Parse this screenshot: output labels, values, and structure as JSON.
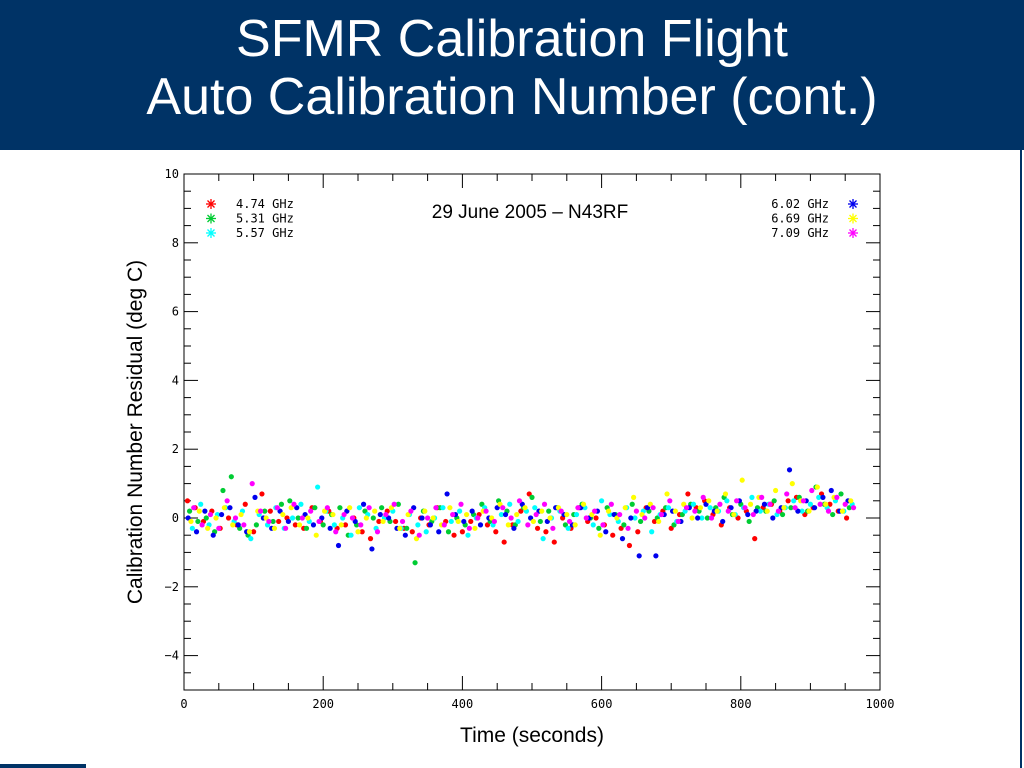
{
  "title": {
    "line1": "SFMR Calibration Flight",
    "line2": "Auto Calibration Number (cont.)"
  },
  "colors": {
    "header_bg": "#003366",
    "header_text": "#ffffff"
  },
  "chart_data": {
    "type": "scatter",
    "xlabel": "Time (seconds)",
    "ylabel": "Calibration Number Residual (deg C)",
    "annotation": "29 June 2005 – N43RF",
    "xlim": [
      0,
      1000
    ],
    "ylim": [
      -5,
      10
    ],
    "xticks": [
      0,
      200,
      400,
      600,
      800,
      1000
    ],
    "yticks": [
      -4,
      -2,
      0,
      2,
      4,
      6,
      8,
      10
    ],
    "grid": false,
    "legend_placement": "top-left and top-right",
    "series": [
      {
        "name": "4.74 GHz",
        "color": "#ff0000",
        "symbol": "asterisk",
        "x": [
          5,
          16,
          28,
          40,
          52,
          64,
          76,
          88,
          100,
          112,
          124,
          136,
          148,
          160,
          172,
          184,
          196,
          208,
          220,
          232,
          244,
          256,
          268,
          280,
          292,
          304,
          316,
          328,
          340,
          352,
          364,
          376,
          388,
          400,
          412,
          424,
          436,
          448,
          460,
          472,
          484,
          496,
          508,
          520,
          532,
          544,
          556,
          568,
          580,
          592,
          604,
          616,
          628,
          640,
          652,
          664,
          676,
          688,
          700,
          712,
          724,
          736,
          748,
          760,
          772,
          784,
          796,
          808,
          820,
          832,
          844,
          856,
          868,
          880,
          892,
          904,
          916,
          928,
          940,
          952
        ],
        "y": [
          0.5,
          0.3,
          -0.1,
          0.2,
          -0.3,
          0.0,
          -0.2,
          0.4,
          -0.4,
          0.7,
          0.2,
          -0.1,
          0.0,
          -0.2,
          -0.3,
          0.3,
          -0.1,
          0.2,
          -0.3,
          -0.2,
          0.0,
          -0.4,
          -0.6,
          -0.1,
          0.2,
          -0.1,
          -0.3,
          -0.4,
          0.0,
          -0.2,
          0.3,
          -0.1,
          -0.5,
          -0.4,
          -0.1,
          0.1,
          -0.2,
          -0.4,
          -0.7,
          -0.2,
          0.2,
          0.7,
          -0.3,
          -0.4,
          -0.7,
          0.0,
          -0.3,
          0.3,
          -0.1,
          0.0,
          -0.2,
          -0.5,
          -0.3,
          -0.8,
          -0.4,
          0.3,
          -0.1,
          0.2,
          -0.3,
          0.1,
          0.7,
          0.3,
          0.5,
          0.1,
          -0.2,
          0.3,
          0.0,
          0.2,
          -0.6,
          0.3,
          0.4,
          0.2,
          0.5,
          0.6,
          0.1,
          0.3,
          0.7,
          0.4,
          0.2,
          0.0
        ]
      },
      {
        "name": "5.31 GHz",
        "color": "#00cc33",
        "symbol": "asterisk",
        "x": [
          8,
          20,
          32,
          44,
          56,
          68,
          80,
          92,
          104,
          116,
          128,
          140,
          152,
          164,
          176,
          188,
          200,
          212,
          224,
          236,
          248,
          260,
          272,
          284,
          296,
          308,
          320,
          332,
          344,
          356,
          368,
          380,
          392,
          404,
          416,
          428,
          440,
          452,
          464,
          476,
          488,
          500,
          512,
          524,
          536,
          548,
          560,
          572,
          584,
          596,
          608,
          620,
          632,
          644,
          656,
          668,
          680,
          692,
          704,
          716,
          728,
          740,
          752,
          764,
          776,
          788,
          800,
          812,
          824,
          836,
          848,
          860,
          872,
          884,
          896,
          908,
          920,
          932,
          944,
          956
        ],
        "y": [
          0.2,
          -0.1,
          0.0,
          -0.4,
          0.8,
          1.2,
          -0.3,
          -0.5,
          -0.2,
          0.2,
          -0.1,
          0.4,
          0.5,
          0.0,
          -0.3,
          0.3,
          -0.2,
          0.1,
          0.3,
          -0.5,
          -0.2,
          0.2,
          0.0,
          0.3,
          -0.1,
          0.4,
          -0.3,
          -1.3,
          0.2,
          -0.1,
          0.3,
          -0.4,
          0.0,
          -0.2,
          0.1,
          0.4,
          -0.1,
          0.5,
          0.2,
          -0.2,
          0.3,
          0.6,
          -0.1,
          0.2,
          0.3,
          -0.2,
          0.1,
          0.4,
          0.0,
          -0.3,
          0.3,
          0.1,
          -0.2,
          0.4,
          -0.1,
          0.2,
          0.0,
          0.3,
          -0.2,
          0.1,
          0.4,
          0.2,
          0.0,
          0.3,
          0.6,
          0.1,
          0.4,
          -0.1,
          0.3,
          0.2,
          0.5,
          0.1,
          0.3,
          0.6,
          0.2,
          0.9,
          0.4,
          0.1,
          0.7,
          0.3
        ]
      },
      {
        "name": "5.57 GHz",
        "color": "#00ffff",
        "symbol": "asterisk",
        "x": [
          12,
          24,
          36,
          48,
          60,
          72,
          84,
          96,
          108,
          120,
          132,
          144,
          156,
          168,
          180,
          192,
          204,
          216,
          228,
          240,
          252,
          264,
          276,
          288,
          300,
          312,
          324,
          336,
          348,
          360,
          372,
          384,
          396,
          408,
          420,
          432,
          444,
          456,
          468,
          480,
          492,
          504,
          516,
          528,
          540,
          552,
          564,
          576,
          588,
          600,
          612,
          624,
          636,
          648,
          660,
          672,
          684,
          696,
          708,
          720,
          732,
          744,
          756,
          768,
          780,
          792,
          804,
          816,
          828,
          840,
          852,
          864,
          876,
          888,
          900,
          912,
          924,
          936,
          948,
          960
        ],
        "y": [
          -0.3,
          0.4,
          -0.2,
          0.1,
          0.3,
          -0.1,
          0.2,
          -0.6,
          0.1,
          -0.2,
          0.3,
          -0.3,
          0.0,
          0.4,
          -0.1,
          0.9,
          0.2,
          -0.2,
          0.0,
          -0.5,
          0.3,
          0.1,
          -0.3,
          0.0,
          0.2,
          -0.3,
          0.1,
          -0.2,
          -0.4,
          0.0,
          0.3,
          -0.1,
          0.2,
          -0.5,
          0.0,
          0.3,
          -0.2,
          0.1,
          0.4,
          -0.1,
          0.2,
          0.3,
          -0.6,
          0.0,
          0.2,
          -0.3,
          0.1,
          0.3,
          -0.2,
          0.5,
          0.1,
          -0.1,
          0.3,
          0.0,
          0.2,
          -0.4,
          0.1,
          0.3,
          -0.1,
          0.2,
          0.4,
          0.0,
          0.3,
          0.2,
          0.5,
          0.1,
          0.3,
          0.6,
          0.2,
          0.4,
          0.1,
          0.3,
          0.5,
          0.2,
          0.4,
          0.6,
          0.3,
          0.5,
          0.2,
          0.4
        ]
      },
      {
        "name": "6.02 GHz",
        "color": "#0000ee",
        "symbol": "asterisk",
        "x": [
          6,
          18,
          30,
          42,
          54,
          66,
          78,
          90,
          102,
          114,
          126,
          138,
          150,
          162,
          174,
          186,
          198,
          210,
          222,
          234,
          246,
          258,
          270,
          282,
          294,
          306,
          318,
          330,
          342,
          354,
          366,
          378,
          390,
          402,
          414,
          426,
          438,
          450,
          462,
          474,
          486,
          498,
          510,
          522,
          534,
          546,
          558,
          570,
          582,
          594,
          606,
          618,
          630,
          642,
          654,
          666,
          678,
          690,
          702,
          714,
          726,
          738,
          750,
          762,
          774,
          786,
          798,
          810,
          822,
          834,
          846,
          858,
          870,
          882,
          894,
          906,
          918,
          930,
          942,
          954
        ],
        "y": [
          0.0,
          -0.4,
          0.2,
          -0.5,
          0.1,
          0.3,
          -0.2,
          -0.4,
          0.6,
          0.0,
          -0.3,
          0.2,
          -0.1,
          0.3,
          0.1,
          -0.2,
          0.0,
          -0.3,
          -0.8,
          0.2,
          -0.1,
          0.4,
          -0.9,
          0.1,
          0.0,
          -0.3,
          -0.5,
          0.3,
          0.0,
          -0.2,
          -0.4,
          0.7,
          0.1,
          -0.1,
          0.2,
          -0.2,
          0.0,
          0.3,
          0.1,
          -0.3,
          0.4,
          0.0,
          0.2,
          -0.1,
          0.3,
          0.1,
          -0.2,
          0.3,
          0.0,
          0.2,
          -0.4,
          0.1,
          -0.6,
          0.0,
          -1.1,
          0.3,
          -1.1,
          0.1,
          0.2,
          -0.1,
          0.3,
          0.0,
          0.4,
          0.2,
          -0.1,
          0.3,
          0.5,
          0.1,
          0.2,
          0.4,
          0.0,
          0.3,
          1.4,
          0.2,
          0.5,
          0.3,
          0.6,
          0.8,
          0.2,
          0.5
        ]
      },
      {
        "name": "6.69 GHz",
        "color": "#ffff00",
        "symbol": "asterisk",
        "x": [
          10,
          22,
          34,
          46,
          58,
          70,
          82,
          94,
          106,
          118,
          130,
          142,
          154,
          166,
          178,
          190,
          202,
          214,
          226,
          238,
          250,
          262,
          274,
          286,
          298,
          310,
          322,
          334,
          346,
          358,
          370,
          382,
          394,
          406,
          418,
          430,
          442,
          454,
          466,
          478,
          490,
          502,
          514,
          526,
          538,
          550,
          562,
          574,
          586,
          598,
          610,
          622,
          634,
          646,
          658,
          670,
          682,
          694,
          706,
          718,
          730,
          742,
          754,
          766,
          778,
          790,
          802,
          814,
          826,
          838,
          850,
          862,
          874,
          886,
          898,
          910,
          922,
          934,
          946,
          958
        ],
        "y": [
          -0.1,
          0.2,
          -0.3,
          0.0,
          0.3,
          -0.2,
          0.1,
          -0.4,
          0.2,
          0.0,
          -0.3,
          0.1,
          0.3,
          -0.2,
          0.0,
          -0.5,
          0.2,
          0.1,
          -0.2,
          0.3,
          -0.4,
          0.0,
          0.2,
          -0.1,
          0.3,
          -0.3,
          0.1,
          -0.6,
          0.2,
          0.0,
          -0.2,
          0.3,
          -0.1,
          0.1,
          -0.3,
          0.2,
          0.0,
          0.4,
          -0.2,
          0.1,
          0.3,
          -0.1,
          0.2,
          0.0,
          0.3,
          0.1,
          -0.2,
          0.4,
          0.1,
          -0.5,
          0.2,
          0.0,
          0.3,
          0.6,
          0.1,
          0.4,
          -0.1,
          0.7,
          0.2,
          0.4,
          0.0,
          0.3,
          0.5,
          0.2,
          0.7,
          0.1,
          1.1,
          0.4,
          0.6,
          0.2,
          0.8,
          0.3,
          1.0,
          0.5,
          0.2,
          0.9,
          0.4,
          0.6,
          0.2,
          0.5
        ]
      },
      {
        "name": "7.09 GHz",
        "color": "#ff00ff",
        "symbol": "asterisk",
        "x": [
          14,
          26,
          38,
          50,
          62,
          74,
          86,
          98,
          110,
          122,
          134,
          146,
          158,
          170,
          182,
          194,
          206,
          218,
          230,
          242,
          254,
          266,
          278,
          290,
          302,
          314,
          326,
          338,
          350,
          362,
          374,
          386,
          398,
          410,
          422,
          434,
          446,
          458,
          470,
          482,
          494,
          506,
          518,
          530,
          542,
          554,
          566,
          578,
          590,
          602,
          614,
          626,
          638,
          650,
          662,
          674,
          686,
          698,
          710,
          722,
          734,
          746,
          758,
          770,
          782,
          794,
          806,
          818,
          830,
          842,
          854,
          866,
          878,
          890,
          902,
          914,
          926,
          938,
          950,
          962
        ],
        "y": [
          0.3,
          -0.2,
          0.1,
          -0.3,
          0.5,
          0.0,
          -0.2,
          1.0,
          0.2,
          -0.1,
          0.3,
          -0.3,
          0.4,
          0.0,
          0.2,
          -0.1,
          0.3,
          -0.4,
          0.1,
          0.0,
          -0.2,
          0.3,
          -0.4,
          0.1,
          0.4,
          -0.1,
          0.2,
          -0.5,
          0.0,
          0.3,
          -0.2,
          0.1,
          0.4,
          -0.3,
          0.0,
          0.2,
          -0.1,
          0.3,
          0.0,
          0.5,
          -0.2,
          0.1,
          0.4,
          -0.3,
          0.2,
          -0.1,
          0.3,
          0.0,
          0.2,
          -0.2,
          0.4,
          0.1,
          -0.3,
          0.2,
          0.0,
          0.3,
          0.1,
          0.5,
          -0.1,
          0.3,
          0.2,
          0.6,
          0.0,
          0.4,
          0.2,
          0.5,
          0.3,
          0.1,
          0.6,
          0.4,
          0.2,
          0.7,
          0.3,
          0.5,
          0.8,
          0.4,
          0.2,
          0.6,
          0.4,
          0.3
        ]
      }
    ]
  }
}
